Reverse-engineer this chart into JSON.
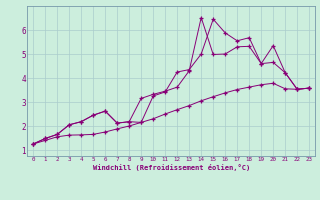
{
  "xlabel": "Windchill (Refroidissement éolien,°C)",
  "bg_color": "#cceedd",
  "grid_color": "#aacccc",
  "line_color": "#880077",
  "spine_color": "#7799aa",
  "xlim": [
    -0.5,
    23.5
  ],
  "ylim": [
    0.75,
    7.0
  ],
  "xticks": [
    0,
    1,
    2,
    3,
    4,
    5,
    6,
    7,
    8,
    9,
    10,
    11,
    12,
    13,
    14,
    15,
    16,
    17,
    18,
    19,
    20,
    21,
    22,
    23
  ],
  "yticks": [
    1,
    2,
    3,
    4,
    5,
    6
  ],
  "line1_x": [
    0,
    1,
    2,
    3,
    4,
    5,
    6,
    7,
    8,
    9,
    10,
    11,
    12,
    13,
    14,
    15,
    16,
    17,
    18,
    19,
    20,
    21,
    22,
    23
  ],
  "line1_y": [
    1.25,
    1.4,
    1.55,
    1.62,
    1.63,
    1.65,
    1.75,
    1.88,
    2.0,
    2.15,
    2.3,
    2.5,
    2.68,
    2.85,
    3.05,
    3.22,
    3.38,
    3.52,
    3.62,
    3.72,
    3.78,
    3.55,
    3.53,
    3.58
  ],
  "line2_x": [
    0,
    1,
    2,
    3,
    4,
    5,
    6,
    7,
    8,
    9,
    10,
    11,
    12,
    13,
    14,
    15,
    16,
    17,
    18,
    19,
    20,
    21,
    22,
    23
  ],
  "line2_y": [
    1.25,
    1.48,
    1.65,
    2.05,
    2.18,
    2.45,
    2.62,
    2.12,
    2.18,
    2.15,
    3.25,
    3.42,
    4.25,
    4.35,
    5.0,
    6.45,
    5.88,
    5.55,
    5.68,
    4.6,
    4.65,
    4.22,
    3.53,
    3.58
  ],
  "line3_x": [
    0,
    1,
    2,
    3,
    4,
    5,
    6,
    7,
    8,
    9,
    10,
    11,
    12,
    13,
    14,
    15,
    16,
    17,
    18,
    19,
    20,
    21,
    22,
    23
  ],
  "line3_y": [
    1.25,
    1.48,
    1.65,
    2.05,
    2.18,
    2.45,
    2.62,
    2.12,
    2.18,
    3.15,
    3.32,
    3.45,
    3.62,
    4.3,
    6.52,
    4.98,
    5.0,
    5.3,
    5.32,
    4.6,
    5.35,
    4.22,
    3.53,
    3.58
  ]
}
